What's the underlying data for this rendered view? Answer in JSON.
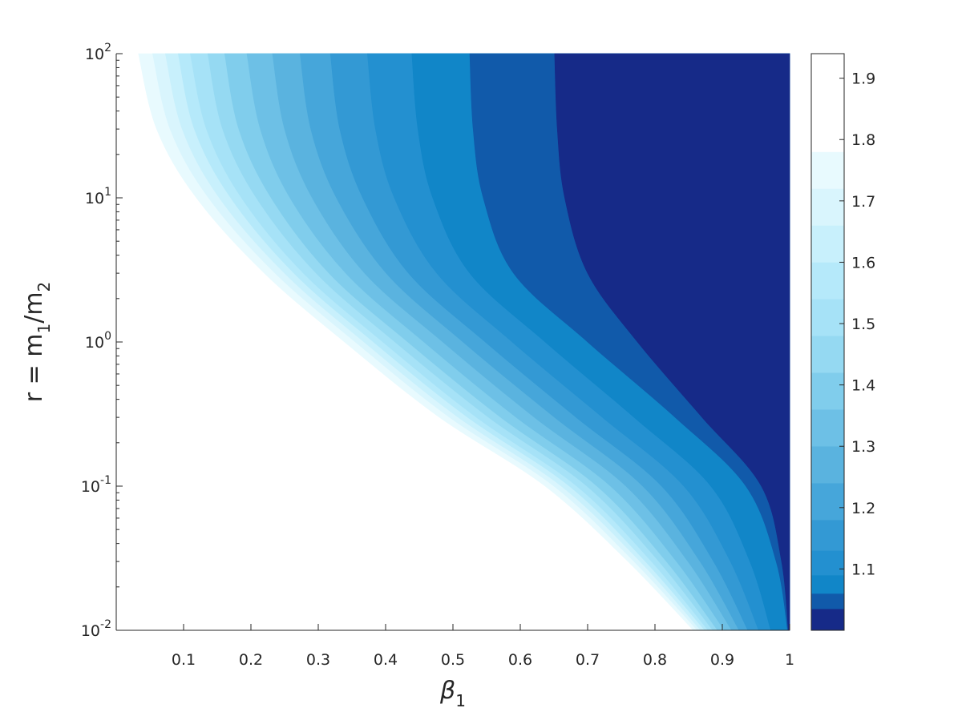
{
  "chart_data": {
    "type": "contour",
    "xlabel": [
      "β",
      "1"
    ],
    "ylabel": [
      "r = m",
      "1",
      "/m",
      "2"
    ],
    "xlim": [
      0,
      1
    ],
    "ylim": [
      0.01,
      100
    ],
    "log_y": true,
    "xticks": [
      0.1,
      0.2,
      0.3,
      0.4,
      0.5,
      0.6,
      0.7,
      0.8,
      0.9,
      1
    ],
    "yticks": [
      {
        "value": 0.01,
        "label": "10",
        "exponent": "-2"
      },
      {
        "value": 0.1,
        "label": "10",
        "exponent": "-1"
      },
      {
        "value": 1,
        "label": "10",
        "exponent": "0"
      },
      {
        "value": 10,
        "label": "10",
        "exponent": "1"
      },
      {
        "value": 100,
        "label": "10",
        "exponent": "2"
      }
    ],
    "r_points": [
      100,
      30,
      10,
      3,
      1,
      0.3,
      0.1,
      0.03,
      0.01
    ],
    "above_color": "#ffffff",
    "contours": [
      {
        "level": 1.035,
        "color": "#162a88",
        "x": [
          0.651,
          0.655,
          0.666,
          0.7,
          0.774,
          0.87,
          0.958,
          0.988,
          0.998
        ]
      },
      {
        "level": 1.06,
        "color": "#115aaa",
        "x": [
          0.525,
          0.53,
          0.545,
          0.59,
          0.7,
          0.83,
          0.935,
          0.98,
          0.997
        ]
      },
      {
        "level": 1.09,
        "color": "#1186c8",
        "x": [
          0.439,
          0.448,
          0.47,
          0.525,
          0.637,
          0.769,
          0.883,
          0.941,
          0.972
        ]
      },
      {
        "level": 1.13,
        "color": "#2390d0",
        "x": [
          0.373,
          0.385,
          0.413,
          0.476,
          0.588,
          0.722,
          0.843,
          0.912,
          0.954
        ]
      },
      {
        "level": 1.18,
        "color": "#3399d4",
        "x": [
          0.318,
          0.332,
          0.366,
          0.434,
          0.548,
          0.683,
          0.81,
          0.887,
          0.938
        ]
      },
      {
        "level": 1.24,
        "color": "#46a6da",
        "x": [
          0.273,
          0.289,
          0.327,
          0.401,
          0.515,
          0.651,
          0.782,
          0.867,
          0.925
        ]
      },
      {
        "level": 1.3,
        "color": "#5ab3df",
        "x": [
          0.232,
          0.25,
          0.291,
          0.369,
          0.485,
          0.621,
          0.757,
          0.849,
          0.914
        ]
      },
      {
        "level": 1.36,
        "color": "#6dc0e6",
        "x": [
          0.194,
          0.214,
          0.258,
          0.341,
          0.457,
          0.594,
          0.734,
          0.832,
          0.903
        ]
      },
      {
        "level": 1.42,
        "color": "#80cdec",
        "x": [
          0.161,
          0.182,
          0.23,
          0.316,
          0.433,
          0.571,
          0.714,
          0.817,
          0.893
        ]
      },
      {
        "level": 1.48,
        "color": "#95d9f2",
        "x": [
          0.136,
          0.158,
          0.208,
          0.297,
          0.414,
          0.553,
          0.699,
          0.806,
          0.886
        ]
      },
      {
        "level": 1.54,
        "color": "#a6e2f7",
        "x": [
          0.11,
          0.134,
          0.186,
          0.278,
          0.396,
          0.535,
          0.684,
          0.795,
          0.879
        ]
      },
      {
        "level": 1.6,
        "color": "#b5e9fa",
        "x": [
          0.092,
          0.116,
          0.17,
          0.264,
          0.382,
          0.522,
          0.673,
          0.786,
          0.874
        ]
      },
      {
        "level": 1.66,
        "color": "#c8f0fc",
        "x": [
          0.073,
          0.098,
          0.153,
          0.25,
          0.368,
          0.508,
          0.661,
          0.778,
          0.868
        ]
      },
      {
        "level": 1.72,
        "color": "#d9f5fd",
        "x": [
          0.054,
          0.08,
          0.137,
          0.236,
          0.355,
          0.495,
          0.65,
          0.769,
          0.863
        ]
      },
      {
        "level": 1.78,
        "color": "#e8fafe",
        "x": [
          0.033,
          0.06,
          0.119,
          0.22,
          0.339,
          0.48,
          0.637,
          0.76,
          0.857
        ]
      }
    ],
    "clim": [
      1,
      1.94
    ],
    "cticks": [
      1.1,
      1.2,
      1.3,
      1.4,
      1.5,
      1.6,
      1.7,
      1.8,
      1.9
    ]
  }
}
